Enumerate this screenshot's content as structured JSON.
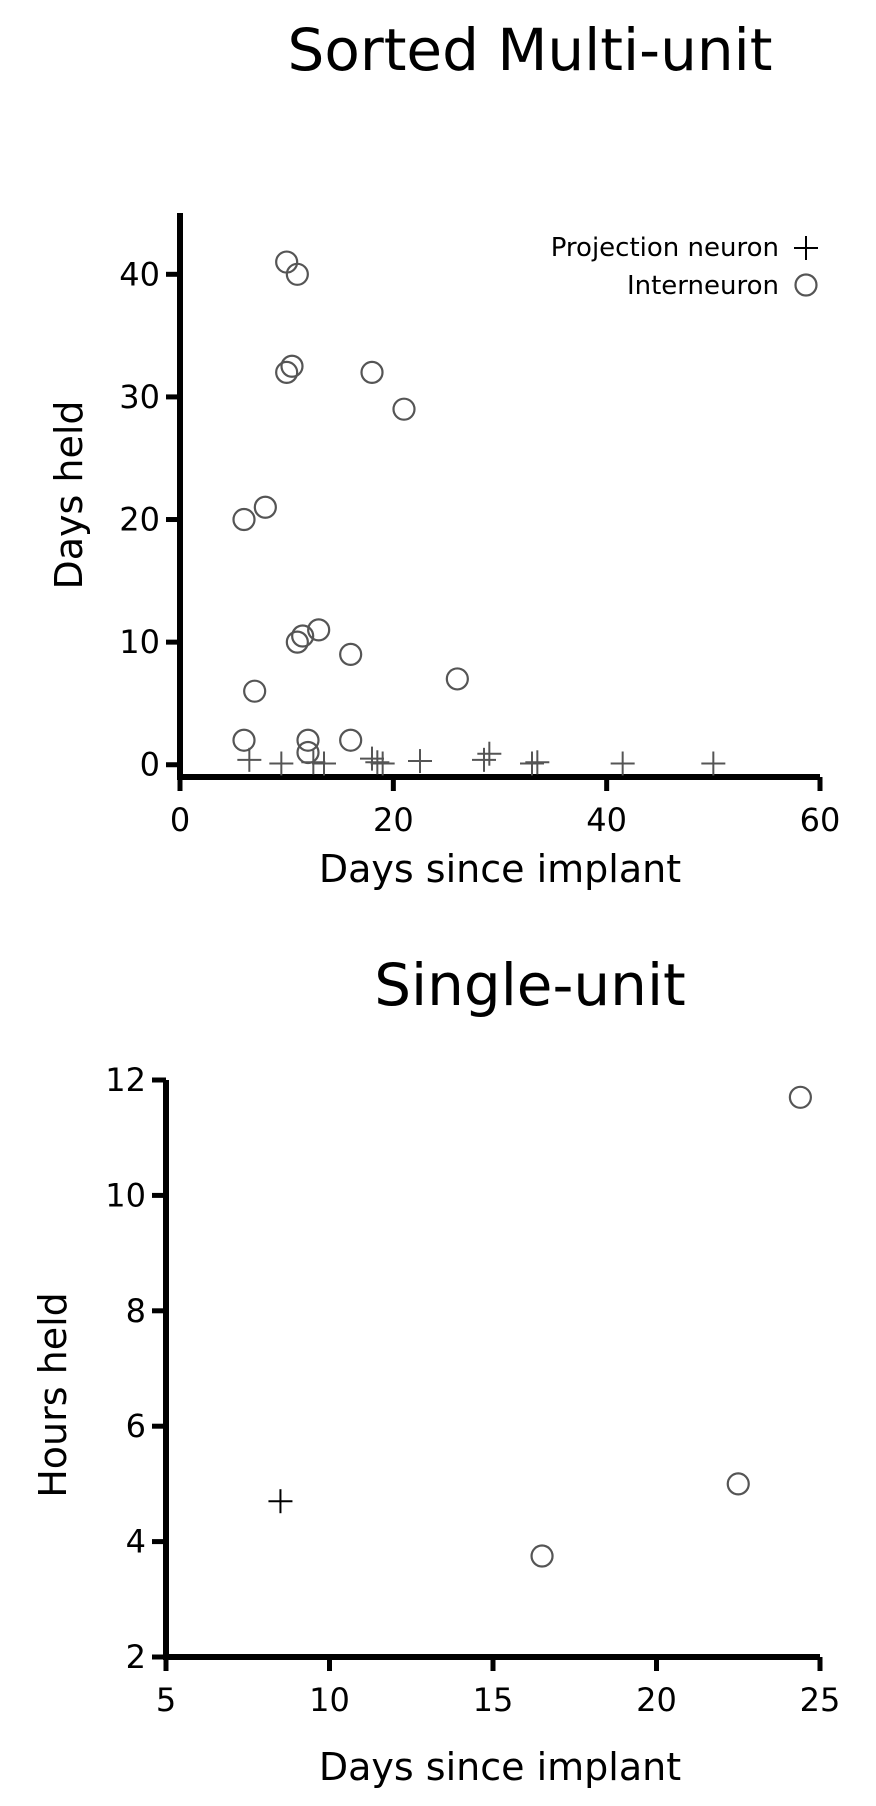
{
  "chart_data": [
    {
      "type": "scatter",
      "title": "Sorted Multi-unit",
      "xlabel": "Days since implant",
      "ylabel": "Days held",
      "xlim": [
        0,
        60
      ],
      "ylim": [
        -1,
        45
      ],
      "xticks": [
        0,
        20,
        40,
        60
      ],
      "yticks": [
        0,
        10,
        20,
        30,
        40
      ],
      "grid": false,
      "legend_position": "top-right",
      "series": [
        {
          "name": "Projection neuron",
          "marker": "plus",
          "color": "#555555",
          "points": [
            [
              6.5,
              0.4
            ],
            [
              9.5,
              0.1
            ],
            [
              12.5,
              0.2
            ],
            [
              13.5,
              0.1
            ],
            [
              18,
              0.5
            ],
            [
              18.5,
              0.2
            ],
            [
              19,
              0.1
            ],
            [
              22.5,
              0.3
            ],
            [
              28.5,
              0.4
            ],
            [
              29,
              0.9
            ],
            [
              33,
              0.1
            ],
            [
              33.5,
              0.2
            ],
            [
              41.5,
              0.1
            ],
            [
              50,
              0.1
            ]
          ]
        },
        {
          "name": "Interneuron",
          "marker": "circle",
          "color": "#555555",
          "points": [
            [
              10,
              41
            ],
            [
              11,
              40
            ],
            [
              10,
              32
            ],
            [
              10.5,
              32.5
            ],
            [
              18,
              32
            ],
            [
              21,
              29
            ],
            [
              6,
              20
            ],
            [
              8,
              21
            ],
            [
              13,
              11
            ],
            [
              11.5,
              10.5
            ],
            [
              11,
              10
            ],
            [
              16,
              9
            ],
            [
              26,
              7
            ],
            [
              7,
              6
            ],
            [
              6,
              2
            ],
            [
              12,
              2
            ],
            [
              16,
              2
            ],
            [
              12,
              1
            ]
          ]
        }
      ]
    },
    {
      "type": "scatter",
      "title": "Single-unit",
      "xlabel": "Days since implant",
      "ylabel": "Hours held",
      "xlim": [
        5,
        25
      ],
      "ylim": [
        2,
        12
      ],
      "xticks": [
        5,
        10,
        15,
        20,
        25
      ],
      "yticks": [
        2,
        4,
        6,
        8,
        10,
        12
      ],
      "grid": false,
      "series": [
        {
          "marker": "plus",
          "color": "#000000",
          "points": [
            [
              8.5,
              4.7
            ]
          ]
        },
        {
          "marker": "circle",
          "color": "#555555",
          "points": [
            [
              16.5,
              3.75
            ],
            [
              22.5,
              5.0
            ],
            [
              24.4,
              11.7
            ]
          ]
        }
      ]
    }
  ]
}
